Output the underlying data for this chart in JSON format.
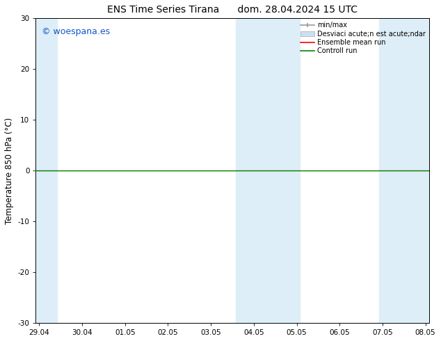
{
  "title": "ENS Time Series Tirana",
  "title2": "dom. 28.04.2024 15 UTC",
  "ylabel": "Temperature 850 hPa (°C)",
  "ylim": [
    -30,
    30
  ],
  "yticks": [
    -30,
    -20,
    -10,
    0,
    10,
    20,
    30
  ],
  "x_start": 0.0,
  "x_end": 9.0,
  "xtick_positions": [
    0,
    1,
    2,
    3,
    4,
    5,
    6,
    7,
    8,
    9
  ],
  "xtick_labels": [
    "29.04",
    "30.04",
    "01.05",
    "02.05",
    "03.05",
    "04.05",
    "05.05",
    "06.05",
    "07.05",
    "08.05"
  ],
  "bg_color": "#ffffff",
  "plot_bg_color": "#ffffff",
  "shaded_color": "#ddeef8",
  "shaded_bands": [
    {
      "xstart": -0.08,
      "xend": 0.42
    },
    {
      "xstart": 4.58,
      "xend": 6.08
    },
    {
      "xstart": 7.92,
      "xend": 9.08
    }
  ],
  "control_run_y": 0.0,
  "ensemble_mean_y": 0.0,
  "watermark": "© woespana.es",
  "watermark_color": "#1155cc",
  "legend_label_minmax": "min/max",
  "legend_label_std": "Desviaci acute;n est acute;ndar",
  "legend_label_ens": "Ensemble mean run",
  "legend_label_ctrl": "Controll run",
  "color_minmax": "#999999",
  "color_std": "#cce0f0",
  "color_ens": "#ff0000",
  "color_ctrl": "#008800",
  "title_fontsize": 10,
  "tick_fontsize": 7.5,
  "ylabel_fontsize": 8.5,
  "watermark_fontsize": 9,
  "legend_fontsize": 7
}
